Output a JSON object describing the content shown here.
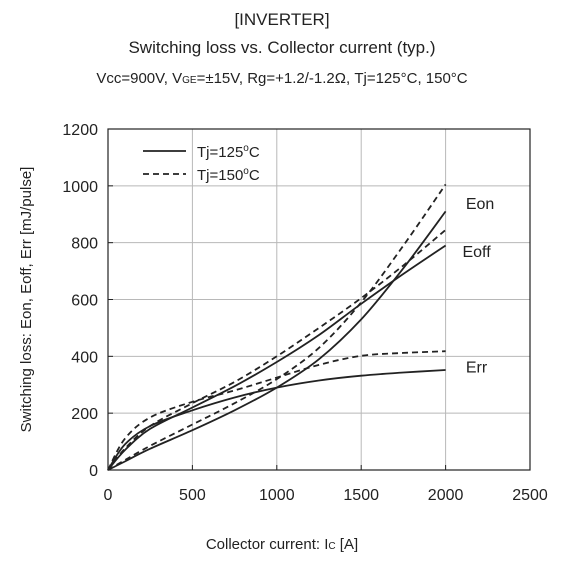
{
  "header": {
    "section": "[INVERTER]",
    "title": "Switching loss vs. Collector current (typ.)",
    "cond_pre": "Vcc=900V, V",
    "cond_sub": "GE",
    "cond_post": "=±15V, Rg=+1.2/-1.2Ω, Tj=125°C, 150°C"
  },
  "axes": {
    "xlabel_pre": "Collector current: I",
    "xlabel_sub": "C",
    "xlabel_post": " [A]",
    "ylabel": "Switching loss: Eon, Eoff, Err [mJ/pulse]"
  },
  "chart_data": {
    "type": "line",
    "xlim": [
      0,
      2500
    ],
    "ylim": [
      0,
      1200
    ],
    "xticks": [
      0,
      500,
      1000,
      1500,
      2000,
      2500
    ],
    "yticks": [
      0,
      200,
      400,
      600,
      800,
      1000,
      1200
    ],
    "grid": true,
    "legend_position": "top-left",
    "legend": [
      {
        "label_pre": "Tj=125",
        "label_sup": "o",
        "label_post": "C",
        "style": "solid"
      },
      {
        "label_pre": "Tj=150",
        "label_sup": "o",
        "label_post": "C",
        "style": "dashed"
      }
    ],
    "curve_labels": [
      {
        "text": "Eon",
        "x": 2120,
        "y": 940
      },
      {
        "text": "Eoff",
        "x": 2100,
        "y": 770
      },
      {
        "text": "Err",
        "x": 2120,
        "y": 365
      }
    ],
    "color": "#222222",
    "series": [
      {
        "style": "solid",
        "x": [
          0,
          100,
          250,
          500,
          750,
          1000,
          1250,
          1500,
          1750,
          2000
        ],
        "y": [
          0,
          30,
          75,
          140,
          210,
          290,
          390,
          530,
          710,
          910
        ]
      },
      {
        "style": "dashed",
        "x": [
          0,
          100,
          250,
          500,
          750,
          1000,
          1250,
          1500,
          1750,
          2000
        ],
        "y": [
          0,
          35,
          85,
          160,
          235,
          320,
          430,
          590,
          790,
          1005
        ]
      },
      {
        "style": "solid",
        "x": [
          0,
          100,
          250,
          500,
          750,
          1000,
          1250,
          1500,
          1750,
          2000
        ],
        "y": [
          0,
          70,
          145,
          220,
          295,
          380,
          475,
          585,
          690,
          790
        ]
      },
      {
        "style": "dashed",
        "x": [
          0,
          100,
          250,
          500,
          750,
          1000,
          1250,
          1500,
          1750,
          2000
        ],
        "y": [
          0,
          75,
          155,
          235,
          310,
          400,
          500,
          605,
          720,
          845
        ]
      },
      {
        "style": "solid",
        "x": [
          0,
          100,
          250,
          500,
          750,
          1000,
          1250,
          1500,
          1750,
          2000
        ],
        "y": [
          0,
          90,
          155,
          210,
          255,
          290,
          315,
          332,
          343,
          352
        ]
      },
      {
        "style": "dashed",
        "x": [
          0,
          100,
          250,
          500,
          750,
          1000,
          1250,
          1500,
          1750,
          2000
        ],
        "y": [
          0,
          110,
          185,
          240,
          280,
          325,
          370,
          402,
          412,
          418
        ]
      }
    ]
  }
}
